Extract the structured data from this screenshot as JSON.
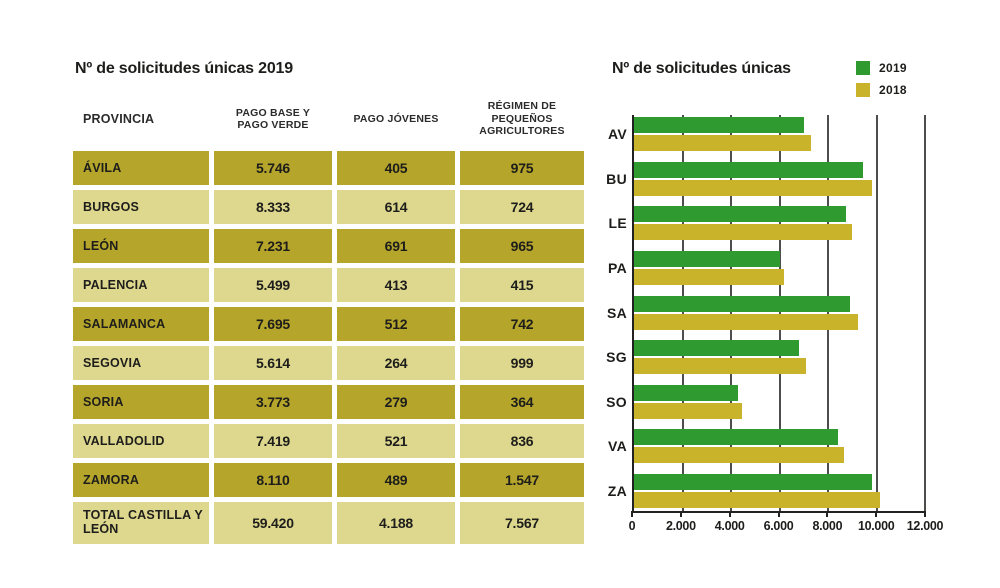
{
  "table": {
    "title": "Nº de solicitudes únicas 2019",
    "columns": [
      "PROVINCIA",
      "PAGO BASE Y PAGO VERDE",
      "PAGO JÓVENES",
      "RÉGIMEN DE PEQUEÑOS AGRICULTORES"
    ],
    "rows": [
      {
        "province": "ÁVILA",
        "pago_base": "5.746",
        "pago_jovenes": "405",
        "regimen": "975"
      },
      {
        "province": "BURGOS",
        "pago_base": "8.333",
        "pago_jovenes": "614",
        "regimen": "724"
      },
      {
        "province": "LEÓN",
        "pago_base": "7.231",
        "pago_jovenes": "691",
        "regimen": "965"
      },
      {
        "province": "PALENCIA",
        "pago_base": "5.499",
        "pago_jovenes": "413",
        "regimen": "415"
      },
      {
        "province": "SALAMANCA",
        "pago_base": "7.695",
        "pago_jovenes": "512",
        "regimen": "742"
      },
      {
        "province": "SEGOVIA",
        "pago_base": "5.614",
        "pago_jovenes": "264",
        "regimen": "999"
      },
      {
        "province": "SORIA",
        "pago_base": "3.773",
        "pago_jovenes": "279",
        "regimen": "364"
      },
      {
        "province": "VALLADOLID",
        "pago_base": "7.419",
        "pago_jovenes": "521",
        "regimen": "836"
      },
      {
        "province": "ZAMORA",
        "pago_base": "8.110",
        "pago_jovenes": "489",
        "regimen": "1.547"
      }
    ],
    "total": {
      "province": "TOTAL CASTILLA Y LEÓN",
      "pago_base": "59.420",
      "pago_jovenes": "4.188",
      "regimen": "7.567"
    }
  },
  "chart": {
    "title": "Nº de solicitudes únicas",
    "legend": [
      {
        "label": "2019",
        "color": "#2e9a2f"
      },
      {
        "label": "2018",
        "color": "#c9b32a"
      }
    ]
  },
  "chart_data": {
    "type": "bar",
    "orientation": "horizontal",
    "title": "Nº de solicitudes únicas",
    "categories": [
      "AV",
      "BU",
      "LE",
      "PA",
      "SA",
      "SG",
      "SO",
      "VA",
      "ZA"
    ],
    "series": [
      {
        "name": "2019",
        "color": "#2e9a2f",
        "values": [
          7000,
          9450,
          8750,
          6000,
          8900,
          6800,
          4300,
          8400,
          9800
        ]
      },
      {
        "name": "2018",
        "color": "#c9b32a",
        "values": [
          7300,
          9800,
          9000,
          6200,
          9250,
          7100,
          4450,
          8650,
          10150
        ]
      }
    ],
    "xlim": [
      0,
      12000
    ],
    "x_ticks": [
      "0",
      "2.000",
      "4.000",
      "6.000",
      "8.000",
      "10.000",
      "12.000"
    ],
    "grid": true,
    "legend_position": "top-right"
  },
  "colors": {
    "row_dark": "#b5a52b",
    "row_light": "#ded88e",
    "bar_2019": "#2e9a2f",
    "bar_2018": "#c9b32a",
    "gridline": "#4d4d4b"
  }
}
